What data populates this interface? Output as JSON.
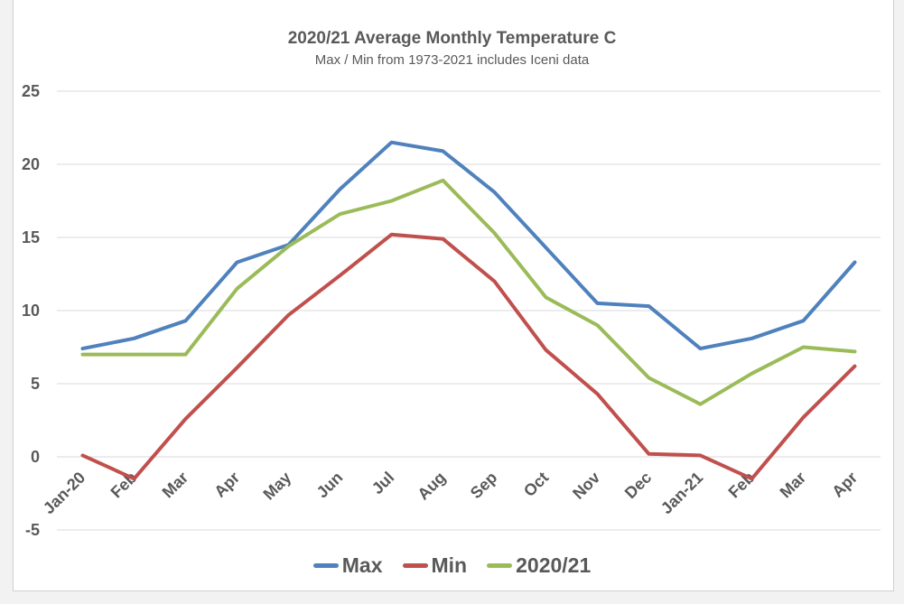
{
  "chart_data": {
    "type": "line",
    "title": "2020/21 Average Monthly Temperature C",
    "subtitle": "Max / Min from 1973-2021 includes Iceni data",
    "xlabel": "",
    "ylabel": "",
    "ylim": [
      -5,
      25
    ],
    "yticks": [
      -5,
      0,
      5,
      10,
      15,
      20,
      25
    ],
    "grid": true,
    "legend_position": "bottom",
    "categories": [
      "Jan-20",
      "Feb",
      "Mar",
      "Apr",
      "May",
      "Jun",
      "Jul",
      "Aug",
      "Sep",
      "Oct",
      "Nov",
      "Dec",
      "Jan-21",
      "Feb",
      "Mar",
      "Apr"
    ],
    "series": [
      {
        "name": "Max",
        "color": "#4f81bd",
        "values": [
          7.4,
          8.1,
          9.3,
          13.3,
          14.5,
          18.3,
          21.5,
          20.9,
          18.1,
          14.3,
          10.5,
          10.3,
          7.4,
          8.1,
          9.3,
          13.3
        ]
      },
      {
        "name": "Min",
        "color": "#c0504d",
        "values": [
          0.1,
          -1.5,
          2.6,
          6.1,
          9.7,
          12.4,
          15.2,
          14.9,
          12.0,
          7.3,
          4.3,
          0.2,
          0.1,
          -1.5,
          2.7,
          6.2
        ]
      },
      {
        "name": "2020/21",
        "color": "#9bbb59",
        "values": [
          7.0,
          7.0,
          7.0,
          11.5,
          14.4,
          16.6,
          17.5,
          18.9,
          15.3,
          10.9,
          9.0,
          5.4,
          3.6,
          5.7,
          7.5,
          7.2
        ]
      }
    ]
  }
}
